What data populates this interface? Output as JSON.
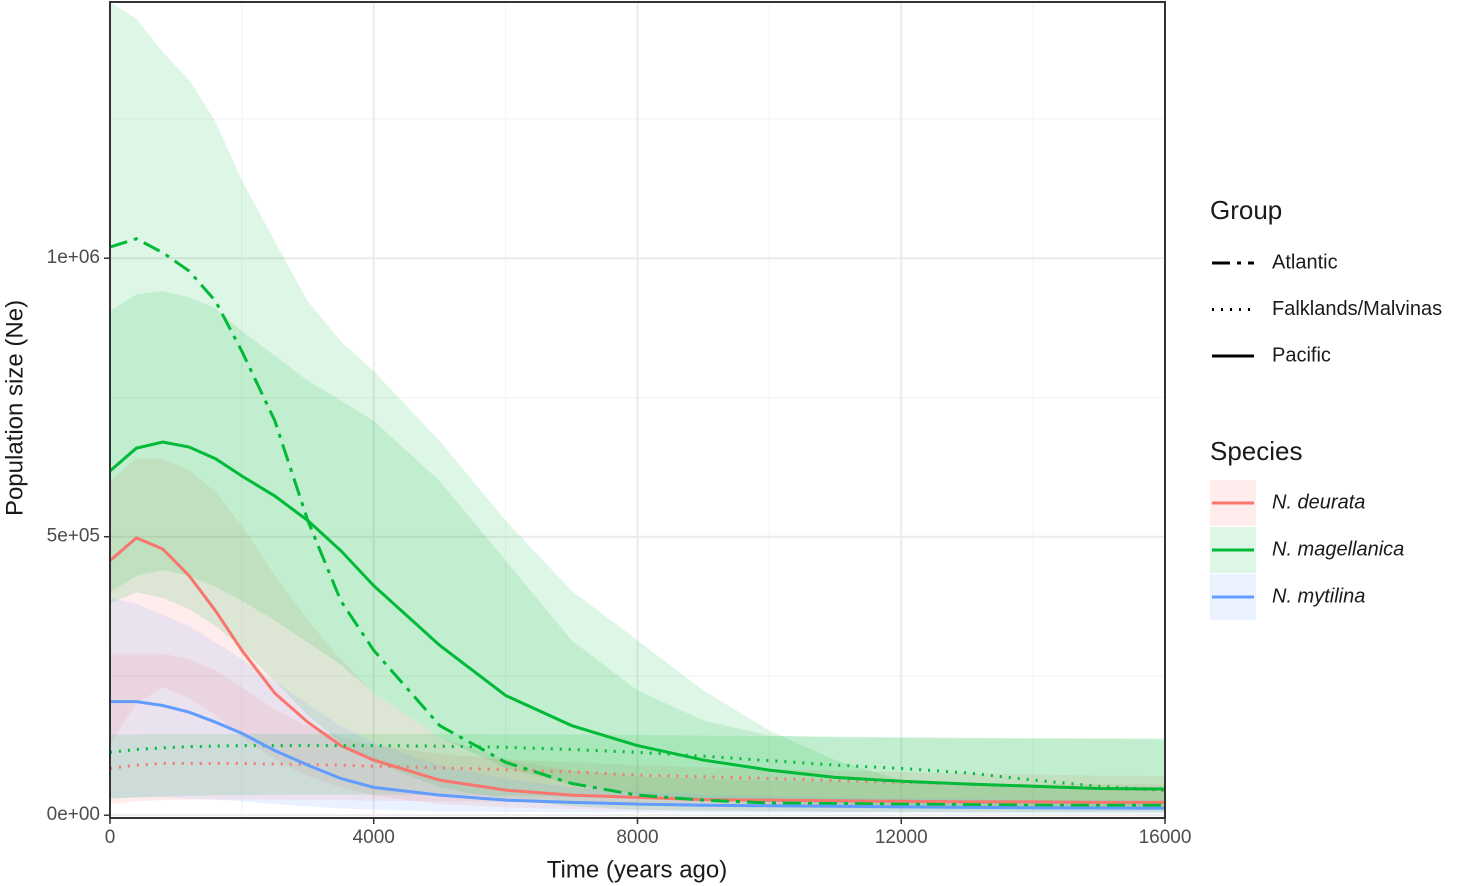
{
  "chart_data": {
    "type": "line",
    "x_title": "Time (years ago)",
    "y_title": "Population size (Ne)",
    "xlim": [
      0,
      16000
    ],
    "ylim": [
      -5000,
      1460000
    ],
    "xticks": [
      0,
      4000,
      8000,
      12000,
      16000
    ],
    "yticks": [
      {
        "value": 0,
        "label": "0e+00"
      },
      {
        "value": 500000,
        "label": "5e+05"
      },
      {
        "value": 1000000,
        "label": "1e+06"
      }
    ],
    "x_minor_ticks": [
      2000,
      6000,
      10000,
      14000
    ],
    "y_minor_ticks": [
      250000,
      750000,
      1250000
    ],
    "grid": true,
    "x": [
      0,
      400,
      800,
      1200,
      1600,
      2000,
      2500,
      3000,
      3500,
      4000,
      5000,
      6000,
      7000,
      8000,
      9000,
      10000,
      11000,
      12000,
      13000,
      14000,
      15000,
      16000
    ],
    "group_legend_title": "Group",
    "groups": [
      {
        "name": "Atlantic",
        "linetype": "dotdash"
      },
      {
        "name": "Falklands/Malvinas",
        "linetype": "dotted"
      },
      {
        "name": "Pacific",
        "linetype": "solid"
      }
    ],
    "species_legend_title": "Species",
    "species": [
      {
        "name": "N. deurata",
        "color": "#F8766D",
        "lines": {
          "Pacific": {
            "values": [
              457000,
              498000,
              478000,
              430000,
              367000,
              296000,
              219000,
              167000,
              125000,
              99000,
              63000,
              45000,
              36000,
              32000,
              28000,
              27000,
              26000,
              25000,
              24000,
              24000,
              23000,
              23000
            ],
            "upper": [
              600000,
              640000,
              640000,
              620000,
              580000,
              520000,
              430000,
              350000,
              280000,
              220000,
              140000,
              100000,
              80000,
              70000,
              65000,
              62000,
              60000,
              58000,
              57000,
              56000,
              56000,
              55000
            ],
            "lower": [
              130000,
              200000,
              230000,
              210000,
              180000,
              140000,
              100000,
              70000,
              50000,
              35000,
              20000,
              14000,
              11000,
              9000,
              8000,
              8000,
              7000,
              7000,
              7000,
              7000,
              7000,
              7000
            ]
          },
          "Falklands/Malvinas": {
            "values": [
              84000,
              90000,
              93000,
              93000,
              93000,
              93000,
              92000,
              91000,
              90000,
              88000,
              85000,
              82000,
              78000,
              72000,
              69000,
              66000,
              62000,
              59000,
              56000,
              52000,
              48000,
              45000
            ],
            "upper": [
              290000,
              290000,
              290000,
              280000,
              260000,
              230000,
              190000,
              160000,
              140000,
              125000,
              110000,
              100000,
              95000,
              90000,
              86000,
              83000,
              80000,
              77000,
              75000,
              73000,
              71000,
              70000
            ],
            "lower": [
              20000,
              25000,
              27000,
              28000,
              28000,
              28000,
              28000,
              27000,
              27000,
              26000,
              25000,
              24000,
              22000,
              21000,
              19000,
              18000,
              17000,
              16000,
              15000,
              14000,
              13000,
              12000
            ]
          }
        }
      },
      {
        "name": "N. magellanica",
        "color": "#00BA38",
        "lines": {
          "Atlantic": {
            "values": [
              1020000,
              1035000,
              1010000,
              977000,
              923000,
              833000,
              708000,
              529000,
              385000,
              296000,
              161000,
              95000,
              57000,
              36000,
              27000,
              22000,
              21000,
              20000,
              19000,
              18000,
              18000,
              18000
            ],
            "upper": [
              1460000,
              1430000,
              1370000,
              1320000,
              1245000,
              1140000,
              1030000,
              923000,
              851000,
              797000,
              672000,
              529000,
              403000,
              314000,
              224000,
              152000,
              99000,
              63000,
              54000,
              50000,
              48000,
              48000
            ],
            "lower": [
              380000,
              400000,
              390000,
              370000,
              340000,
              300000,
              240000,
              180000,
              130000,
              95000,
              50000,
              28000,
              16000,
              10000,
              8000,
              7000,
              6000,
              6000,
              5000,
              5000,
              5000,
              5000
            ]
          },
          "Pacific": {
            "values": [
              618000,
              659000,
              670000,
              661000,
              640000,
              609000,
              573000,
              529000,
              475000,
              412000,
              305000,
              215000,
              161000,
              125000,
              99000,
              81000,
              68000,
              61000,
              56000,
              52000,
              48000,
              47000
            ],
            "upper": [
              905000,
              935000,
              941000,
              930000,
              910000,
              869000,
              825000,
              780000,
              745000,
              708000,
              600000,
              457000,
              314000,
              224000,
              170000,
              143000,
              140000,
              139000,
              138000,
              138000,
              138000,
              138000
            ],
            "lower": [
              400000,
              430000,
              440000,
              430000,
              410000,
              385000,
              350000,
              310000,
              270000,
              220000,
              140000,
              85000,
              55000,
              38000,
              28000,
              22000,
              18000,
              16000,
              15000,
              14000,
              14000,
              13000
            ]
          },
          "Falklands/Malvinas": {
            "values": [
              113000,
              118000,
              121000,
              123000,
              124000,
              125000,
              125000,
              125000,
              125000,
              125000,
              124000,
              122000,
              118000,
              113000,
              106000,
              98000,
              90000,
              84000,
              76000,
              63000,
              52000,
              45000
            ],
            "upper": [
              145000,
              145000,
              146000,
              146000,
              146000,
              146000,
              146000,
              146000,
              146000,
              146000,
              146000,
              145000,
              145000,
              144000,
              143000,
              142000,
              141000,
              140000,
              139000,
              138000,
              137000,
              136000
            ],
            "lower": [
              30000,
              32000,
              34000,
              35000,
              36000,
              36000,
              37000,
              37000,
              37000,
              37000,
              36000,
              35000,
              33000,
              31000,
              28000,
              25000,
              22000,
              19000,
              16000,
              13000,
              11000,
              10000
            ]
          }
        }
      },
      {
        "name": "N. mytilina",
        "color": "#619CFF",
        "lines": {
          "Pacific": {
            "values": [
              204000,
              204000,
              197000,
              185000,
              167000,
              147000,
              116000,
              90000,
              66000,
              50000,
              36000,
              27000,
              23000,
              20000,
              18000,
              17000,
              16000,
              15000,
              14000,
              13500,
              13000,
              12500
            ],
            "upper": [
              390000,
              380000,
              360000,
              340000,
              310000,
              280000,
              240000,
              200000,
              160000,
              130000,
              90000,
              65000,
              50000,
              42000,
              37000,
              34000,
              32000,
              30000,
              29000,
              28000,
              27000,
              26000
            ],
            "lower": [
              30000,
              32000,
              32000,
              30000,
              28000,
              25000,
              20000,
              16000,
              12000,
              10000,
              7000,
              6000,
              5000,
              5000,
              4000,
              4000,
              4000,
              4000,
              3000,
              3000,
              3000,
              3000
            ]
          }
        }
      }
    ]
  }
}
